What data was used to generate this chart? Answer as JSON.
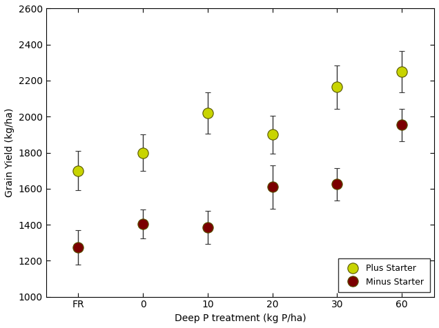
{
  "x_labels": [
    "FR",
    "0",
    "10",
    "20",
    "30",
    "60"
  ],
  "x_positions": [
    0,
    1,
    2,
    3,
    4,
    5
  ],
  "plus_starter_y": [
    1700,
    1800,
    2020,
    1900,
    2165,
    2250
  ],
  "plus_starter_err": [
    110,
    100,
    115,
    105,
    120,
    115
  ],
  "minus_starter_y": [
    1275,
    1405,
    1385,
    1610,
    1625,
    1955
  ],
  "minus_starter_err": [
    95,
    80,
    90,
    120,
    90,
    90
  ],
  "plus_color": "#c8d400",
  "minus_color": "#7b0000",
  "plus_edge_color": "#555500",
  "minus_edge_color": "#2a0000",
  "marker_size": 11,
  "ylabel": "Grain Yield (kg/ha)",
  "xlabel": "Deep P treatment (kg P/ha)",
  "ylim": [
    1000,
    2600
  ],
  "yticks": [
    1000,
    1200,
    1400,
    1600,
    1800,
    2000,
    2200,
    2400,
    2600
  ],
  "legend_labels": [
    "Plus Starter",
    "Minus Starter"
  ],
  "capsize": 3,
  "elinewidth": 1.0,
  "ecolor": "#333333",
  "figwidth": 6.36,
  "figheight": 4.76,
  "dpi": 100
}
